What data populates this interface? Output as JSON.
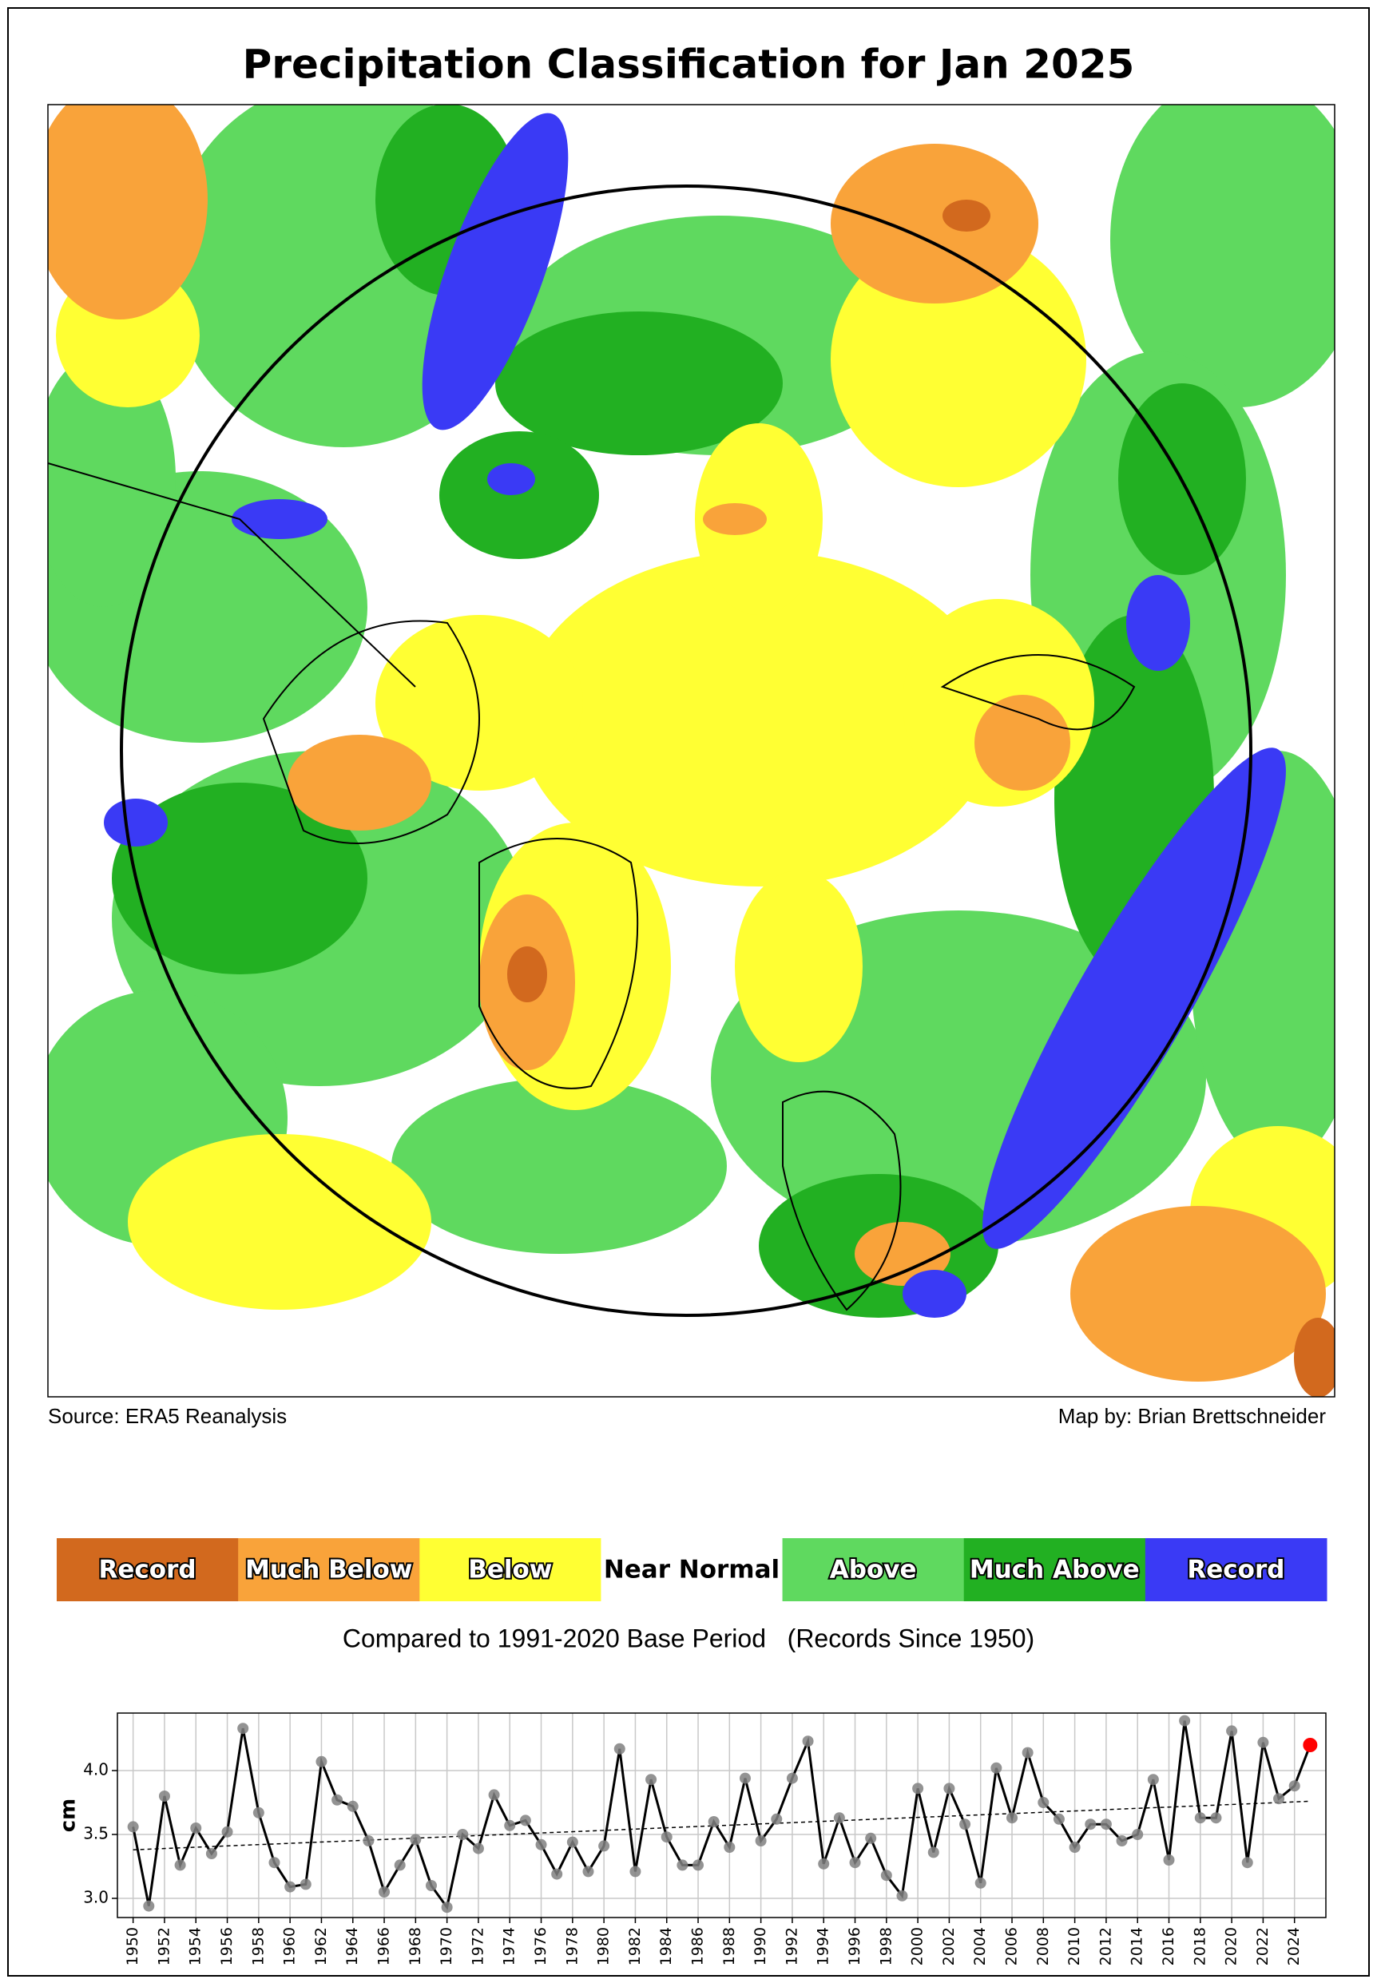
{
  "title": "Precipitation Classification for Jan 2025",
  "source": "Source: ERA5 Reanalysis",
  "credit": "Map by: Brian Brettschneider",
  "legend": {
    "items": [
      {
        "label": "Record",
        "color": "#d2691e"
      },
      {
        "label": "Much Below",
        "color": "#f9a33a"
      },
      {
        "label": "Below",
        "color": "#ffff33"
      },
      {
        "label": "Near Normal",
        "color": "#ffffff"
      },
      {
        "label": "Above",
        "color": "#5fd95f"
      },
      {
        "label": "Much Above",
        "color": "#22b022"
      },
      {
        "label": "Record",
        "color": "#3a3af5"
      }
    ]
  },
  "base_period_note": "Compared to 1991-2020 Base Period   (Records Since 1950)",
  "chart_data": {
    "type": "line",
    "y_label": "cm",
    "x": [
      1950,
      1951,
      1952,
      1953,
      1954,
      1955,
      1956,
      1957,
      1958,
      1959,
      1960,
      1961,
      1962,
      1963,
      1964,
      1965,
      1966,
      1967,
      1968,
      1969,
      1970,
      1971,
      1972,
      1973,
      1974,
      1975,
      1976,
      1977,
      1978,
      1979,
      1980,
      1981,
      1982,
      1983,
      1984,
      1985,
      1986,
      1987,
      1988,
      1989,
      1990,
      1991,
      1992,
      1993,
      1994,
      1995,
      1996,
      1997,
      1998,
      1999,
      2000,
      2001,
      2002,
      2003,
      2004,
      2005,
      2006,
      2007,
      2008,
      2009,
      2010,
      2011,
      2012,
      2013,
      2014,
      2015,
      2016,
      2017,
      2018,
      2019,
      2020,
      2021,
      2022,
      2023,
      2024,
      2025
    ],
    "series": [
      {
        "color": "#000000",
        "marker_color": "#808080",
        "last_point_color": "#ff0000",
        "values": [
          3.56,
          2.94,
          3.8,
          3.26,
          3.55,
          3.35,
          3.52,
          4.33,
          3.67,
          3.28,
          3.09,
          3.11,
          4.07,
          3.77,
          3.72,
          3.45,
          3.05,
          3.26,
          3.46,
          3.1,
          2.93,
          3.5,
          3.39,
          3.81,
          3.57,
          3.61,
          3.42,
          3.19,
          3.44,
          3.21,
          3.41,
          4.17,
          3.21,
          3.93,
          3.48,
          3.26,
          3.26,
          3.6,
          3.4,
          3.94,
          3.45,
          3.62,
          3.94,
          4.23,
          3.27,
          3.63,
          3.28,
          3.47,
          3.18,
          3.02,
          3.86,
          3.36,
          3.86,
          3.58,
          3.12,
          4.02,
          3.63,
          4.14,
          3.75,
          3.62,
          3.4,
          3.58,
          3.58,
          3.45,
          3.5,
          3.93,
          3.3,
          4.39,
          3.63,
          3.63,
          4.31,
          3.28,
          4.22,
          3.78,
          3.88,
          4.2
        ]
      }
    ],
    "trend": {
      "x": [
        1950,
        2025
      ],
      "values": [
        3.38,
        3.76
      ],
      "color": "#000000"
    },
    "xlim": [
      1949,
      2026
    ],
    "ylim": [
      2.85,
      4.45
    ],
    "xticks": [
      1950,
      1952,
      1954,
      1956,
      1958,
      1960,
      1962,
      1964,
      1966,
      1968,
      1970,
      1972,
      1974,
      1976,
      1978,
      1980,
      1982,
      1984,
      1986,
      1988,
      1990,
      1992,
      1994,
      1996,
      1998,
      2000,
      2002,
      2004,
      2006,
      2008,
      2010,
      2012,
      2014,
      2016,
      2018,
      2020,
      2022,
      2024
    ],
    "yticks": [
      {
        "value": 3,
        "label": "3.0"
      },
      {
        "value": 3.5,
        "label": "3.5"
      },
      {
        "value": 4,
        "label": "4.0"
      }
    ],
    "grid": true
  }
}
